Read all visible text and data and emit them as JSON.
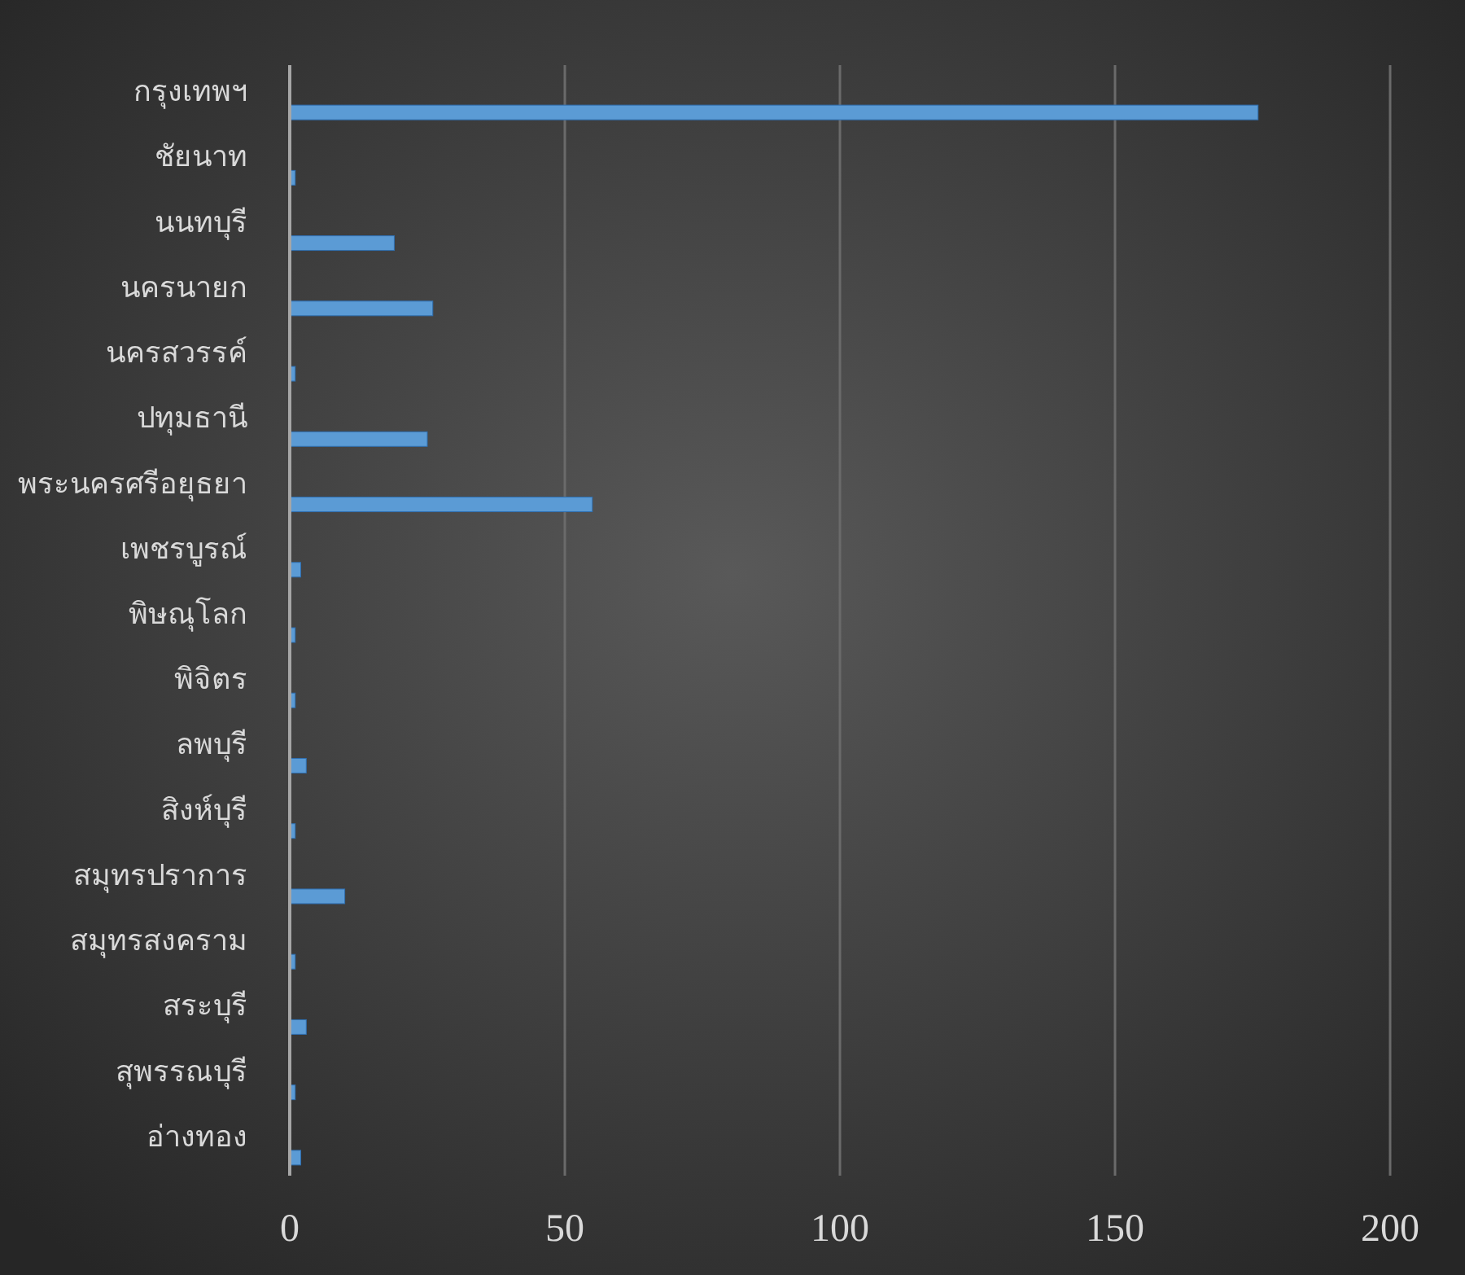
{
  "chart_data": {
    "type": "bar",
    "orientation": "horizontal",
    "categories": [
      "กรุงเทพฯ",
      "ชัยนาท",
      "นนทบุรี",
      "นครนายก",
      "นครสวรรค์",
      "ปทุมธานี",
      "พระนครศรีอยุธยา",
      "เพชรบูรณ์",
      "พิษณุโลก",
      "พิจิตร",
      "ลพบุรี",
      "สิงห์บุรี",
      "สมุทรปราการ",
      "สมุทรสงคราม",
      "สระบุรี",
      "สุพรรณบุรี",
      "อ่างทอง"
    ],
    "values": [
      176,
      1,
      19,
      26,
      1,
      25,
      55,
      2,
      1,
      1,
      3,
      1,
      10,
      1,
      3,
      1,
      2
    ],
    "color": "#5b9bd5",
    "xlim": [
      0,
      200
    ],
    "xticks": [
      0,
      50,
      100,
      150,
      200
    ],
    "grid": "x"
  }
}
